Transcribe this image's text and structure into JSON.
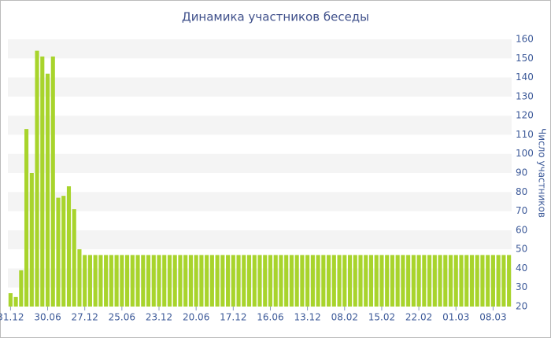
{
  "chart_data": {
    "type": "bar",
    "title": "Динамика участников беседы",
    "y_label": "Число участников",
    "categories": [
      "31.12",
      null,
      null,
      null,
      null,
      null,
      null,
      "30.06",
      null,
      null,
      null,
      null,
      null,
      null,
      "27.12",
      null,
      null,
      null,
      null,
      null,
      null,
      "25.06",
      null,
      null,
      null,
      null,
      null,
      null,
      "23.12",
      null,
      null,
      null,
      null,
      null,
      null,
      "20.06",
      null,
      null,
      null,
      null,
      null,
      null,
      "17.12",
      null,
      null,
      null,
      null,
      null,
      null,
      "16.06",
      null,
      null,
      null,
      null,
      null,
      null,
      "13.12",
      null,
      null,
      null,
      null,
      null,
      null,
      "08.02",
      null,
      null,
      null,
      null,
      null,
      null,
      "15.02",
      null,
      null,
      null,
      null,
      null,
      null,
      "22.02",
      null,
      null,
      null,
      null,
      null,
      null,
      "01.03",
      null,
      null,
      null,
      null,
      null,
      null,
      "08.03",
      null,
      null,
      null
    ],
    "values": [
      27,
      25,
      39,
      113,
      90,
      154,
      151,
      142,
      151,
      77,
      78,
      83,
      71,
      50,
      47,
      47,
      47,
      47,
      47,
      47,
      47,
      47,
      47,
      47,
      47,
      47,
      47,
      47,
      47,
      47,
      47,
      47,
      47,
      47,
      47,
      47,
      47,
      47,
      47,
      47,
      47,
      47,
      47,
      47,
      47,
      47,
      47,
      47,
      47,
      47,
      47,
      47,
      47,
      47,
      47,
      47,
      47,
      47,
      47,
      47,
      47,
      47,
      47,
      47,
      47,
      47,
      47,
      47,
      47,
      47,
      47,
      47,
      47,
      47,
      47,
      47,
      47,
      47,
      47,
      47,
      47,
      47,
      47,
      47,
      47,
      47,
      47,
      47,
      47,
      47,
      47,
      47,
      47,
      47,
      47
    ],
    "color": "#a8d42c",
    "ylim": [
      20,
      160
    ],
    "yticks": [
      20,
      30,
      40,
      50,
      60,
      70,
      80,
      90,
      100,
      110,
      120,
      130,
      140,
      150,
      160
    ],
    "y_axis_side": "right",
    "grid": true
  }
}
